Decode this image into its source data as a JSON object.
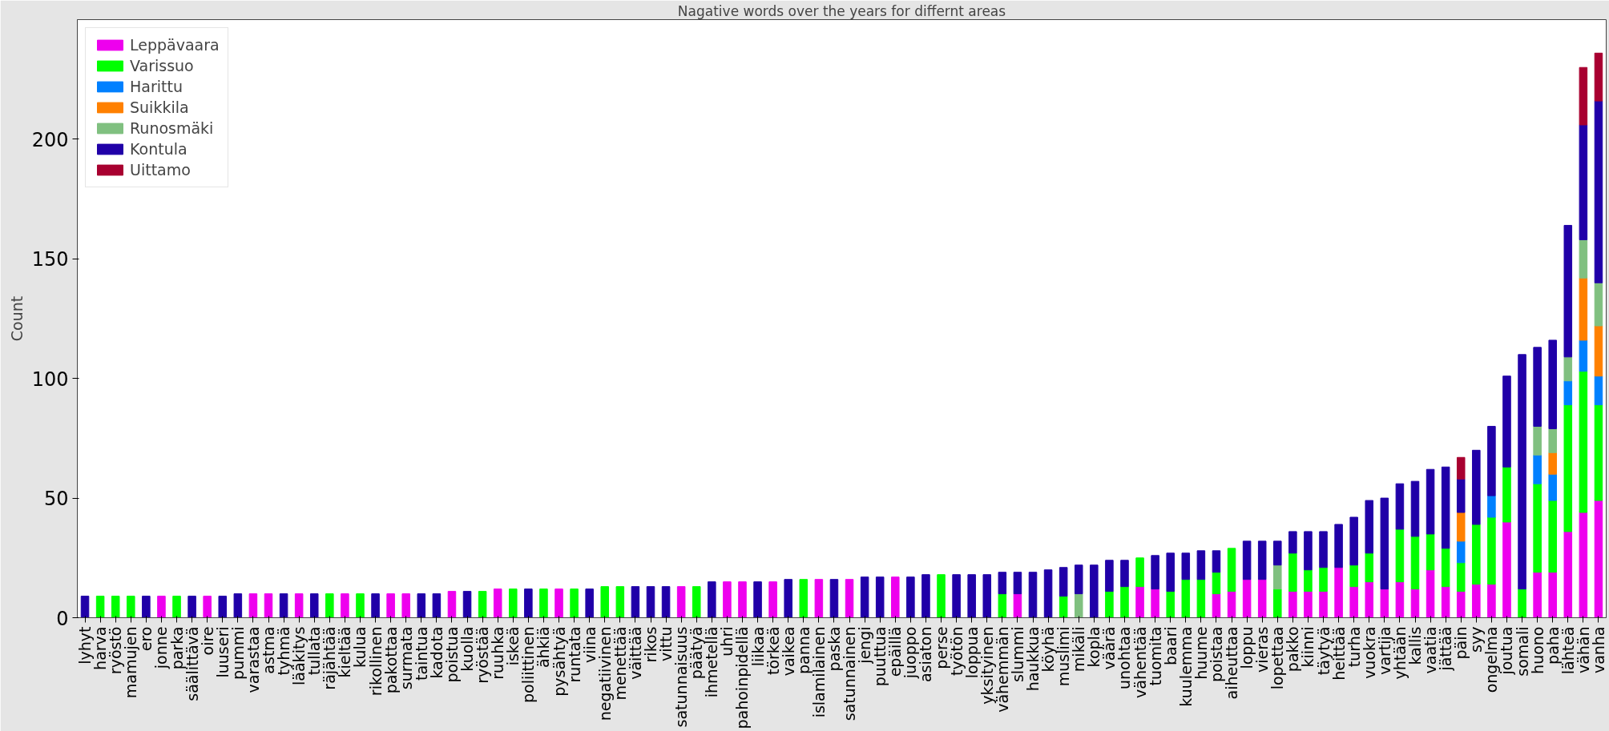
{
  "chart_data": {
    "type": "bar",
    "stacked": true,
    "title": "Nagative words over the years for differnt areas",
    "ylabel": "Count",
    "categories": [
      "lyhyt",
      "harva",
      "ryöstö",
      "mamujen",
      "ero",
      "jonne",
      "parka",
      "säälittävä",
      "oire",
      "luuseri",
      "pummi",
      "varastaa",
      "astma",
      "tyhmä",
      "lääkitys",
      "tullata",
      "räjähtää",
      "kieltää",
      "kulua",
      "rikollinen",
      "pakottaa",
      "surmata",
      "taintua",
      "kadota",
      "poistua",
      "kuolla",
      "ryöstää",
      "ruuhka",
      "iskeä",
      "poliittinen",
      "ähkiä",
      "pysähtyä",
      "runtata",
      "viina",
      "negatiivinen",
      "menettää",
      "väittää",
      "rikos",
      "vittu",
      "satunnaisuus",
      "päätyä",
      "ihmetellä",
      "uhri",
      "pahoinpidellä",
      "liikaa",
      "törkeä",
      "vaikea",
      "panna",
      "islamilainen",
      "paska",
      "satunnainen",
      "jengi",
      "puuttua",
      "epäillä",
      "juoppo",
      "asiaton",
      "perse",
      "työtön",
      "loppua",
      "yksityinen",
      "vähemmän",
      "slummi",
      "haukkua",
      "köyhä",
      "muslimi",
      "mikäli",
      "kopla",
      "väärä",
      "unohtaa",
      "vähentää",
      "tuomita",
      "baari",
      "kuulemma",
      "huume",
      "poistaa",
      "aiheuttaa",
      "loppu",
      "vieras",
      "lopettaa",
      "pakko",
      "kiinni",
      "täytyä",
      "heittää",
      "turha",
      "vuokra",
      "vartija",
      "yhtään",
      "kallis",
      "vaatia",
      "jättää",
      "päin",
      "syy",
      "ongelma",
      "joutua",
      "somali",
      "huono",
      "paha",
      "lähteä",
      "vähän",
      "vanha"
    ],
    "series": [
      {
        "name": "Leppävaara",
        "color": "#ee00ee",
        "values": [
          null,
          null,
          null,
          null,
          null,
          9,
          null,
          null,
          9,
          null,
          null,
          10,
          10,
          null,
          10,
          null,
          null,
          10,
          null,
          null,
          10,
          10,
          null,
          null,
          11,
          null,
          null,
          12,
          null,
          null,
          null,
          12,
          null,
          null,
          null,
          null,
          null,
          null,
          null,
          13,
          null,
          null,
          15,
          15,
          null,
          15,
          null,
          null,
          16,
          null,
          16,
          null,
          null,
          17,
          null,
          null,
          null,
          null,
          null,
          null,
          null,
          10,
          null,
          null,
          null,
          null,
          null,
          null,
          null,
          13,
          12,
          null,
          null,
          null,
          10,
          11,
          16,
          16,
          null,
          11,
          11,
          11,
          21,
          13,
          15,
          12,
          15,
          12,
          20,
          13,
          11,
          14,
          14,
          40,
          null,
          19,
          19,
          36,
          44,
          49
        ]
      },
      {
        "name": "Varissuo",
        "color": "#00ff00",
        "values": [
          null,
          9,
          9,
          9,
          null,
          null,
          9,
          null,
          null,
          null,
          null,
          null,
          null,
          null,
          null,
          null,
          10,
          null,
          10,
          null,
          null,
          null,
          null,
          null,
          null,
          null,
          11,
          null,
          12,
          null,
          12,
          null,
          12,
          null,
          13,
          13,
          null,
          null,
          null,
          null,
          13,
          null,
          null,
          null,
          null,
          null,
          null,
          16,
          null,
          null,
          null,
          null,
          null,
          null,
          null,
          null,
          18,
          null,
          null,
          null,
          10,
          null,
          null,
          null,
          9,
          null,
          null,
          11,
          13,
          12,
          null,
          11,
          16,
          16,
          9,
          18,
          null,
          null,
          12,
          16,
          9,
          10,
          null,
          9,
          12,
          null,
          22,
          22,
          15,
          16,
          12,
          25,
          28,
          23,
          12,
          37,
          30,
          53,
          59,
          40
        ]
      },
      {
        "name": "Harittu",
        "color": "#0080ff",
        "values": [
          null,
          null,
          null,
          null,
          null,
          null,
          null,
          null,
          null,
          null,
          null,
          null,
          null,
          null,
          null,
          null,
          null,
          null,
          null,
          null,
          null,
          null,
          null,
          null,
          null,
          null,
          null,
          null,
          null,
          null,
          null,
          null,
          null,
          null,
          null,
          null,
          null,
          null,
          null,
          null,
          null,
          null,
          null,
          null,
          null,
          null,
          null,
          null,
          null,
          null,
          null,
          null,
          null,
          null,
          null,
          null,
          null,
          null,
          null,
          null,
          null,
          null,
          null,
          null,
          null,
          null,
          null,
          null,
          null,
          null,
          null,
          null,
          null,
          null,
          null,
          null,
          null,
          null,
          null,
          null,
          null,
          null,
          null,
          null,
          null,
          null,
          null,
          null,
          null,
          null,
          9,
          null,
          9,
          null,
          null,
          12,
          11,
          10,
          13,
          12
        ]
      },
      {
        "name": "Suikkila",
        "color": "#ff8000",
        "values": [
          null,
          null,
          null,
          null,
          null,
          null,
          null,
          null,
          null,
          null,
          null,
          null,
          null,
          null,
          null,
          null,
          null,
          null,
          null,
          null,
          null,
          null,
          null,
          null,
          null,
          null,
          null,
          null,
          null,
          null,
          null,
          null,
          null,
          null,
          null,
          null,
          null,
          null,
          null,
          null,
          null,
          null,
          null,
          null,
          null,
          null,
          null,
          null,
          null,
          null,
          null,
          null,
          null,
          null,
          null,
          null,
          null,
          null,
          null,
          null,
          null,
          null,
          null,
          null,
          null,
          null,
          null,
          null,
          null,
          null,
          null,
          null,
          null,
          null,
          null,
          null,
          null,
          null,
          null,
          null,
          null,
          null,
          null,
          null,
          null,
          null,
          null,
          null,
          null,
          null,
          12,
          null,
          null,
          null,
          null,
          null,
          9,
          null,
          26,
          21
        ]
      },
      {
        "name": "Runosmäki",
        "color": "#80c080",
        "values": [
          null,
          null,
          null,
          null,
          null,
          null,
          null,
          null,
          null,
          null,
          null,
          null,
          null,
          null,
          null,
          null,
          null,
          null,
          null,
          null,
          null,
          null,
          null,
          null,
          null,
          null,
          null,
          null,
          null,
          null,
          null,
          null,
          null,
          null,
          null,
          null,
          null,
          null,
          null,
          null,
          null,
          null,
          null,
          null,
          null,
          null,
          null,
          null,
          null,
          null,
          null,
          null,
          null,
          null,
          null,
          null,
          null,
          null,
          null,
          null,
          null,
          null,
          null,
          null,
          null,
          10,
          null,
          null,
          null,
          null,
          null,
          null,
          null,
          null,
          null,
          null,
          null,
          null,
          10,
          null,
          null,
          null,
          null,
          null,
          null,
          null,
          null,
          null,
          null,
          null,
          null,
          null,
          null,
          null,
          null,
          12,
          10,
          10,
          16,
          18
        ]
      },
      {
        "name": "Kontula",
        "color": "#2000a8",
        "values": [
          9,
          null,
          null,
          null,
          9,
          null,
          null,
          9,
          null,
          9,
          10,
          null,
          null,
          10,
          null,
          10,
          null,
          null,
          null,
          10,
          null,
          null,
          10,
          10,
          null,
          11,
          null,
          null,
          null,
          12,
          null,
          null,
          null,
          12,
          null,
          null,
          13,
          13,
          13,
          null,
          null,
          15,
          null,
          null,
          15,
          null,
          16,
          null,
          null,
          16,
          null,
          17,
          17,
          null,
          17,
          18,
          null,
          18,
          18,
          18,
          9,
          9,
          19,
          20,
          12,
          12,
          22,
          13,
          11,
          null,
          14,
          16,
          11,
          12,
          9,
          null,
          16,
          16,
          10,
          9,
          16,
          15,
          18,
          20,
          22,
          38,
          19,
          23,
          27,
          34,
          14,
          31,
          29,
          38,
          98,
          33,
          37,
          55,
          48,
          76
        ]
      },
      {
        "name": "Uittamo",
        "color": "#a80030",
        "values": [
          null,
          null,
          null,
          null,
          null,
          null,
          null,
          null,
          null,
          null,
          null,
          null,
          null,
          null,
          null,
          null,
          null,
          null,
          null,
          null,
          null,
          null,
          null,
          null,
          null,
          null,
          null,
          null,
          null,
          null,
          null,
          null,
          null,
          null,
          null,
          null,
          null,
          null,
          null,
          null,
          null,
          null,
          null,
          null,
          null,
          null,
          null,
          null,
          null,
          null,
          null,
          null,
          null,
          null,
          null,
          null,
          null,
          null,
          null,
          null,
          null,
          null,
          null,
          null,
          null,
          null,
          null,
          null,
          null,
          null,
          null,
          null,
          null,
          null,
          null,
          null,
          null,
          null,
          null,
          null,
          null,
          null,
          null,
          null,
          null,
          null,
          null,
          null,
          null,
          null,
          9,
          null,
          null,
          null,
          null,
          null,
          null,
          null,
          24,
          20
        ]
      }
    ],
    "ylim": [
      0,
      250
    ],
    "yticks": [
      0,
      50,
      100,
      150,
      200
    ],
    "grid": false,
    "legend": "top left"
  }
}
